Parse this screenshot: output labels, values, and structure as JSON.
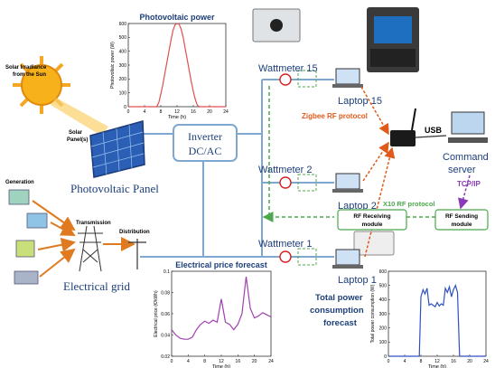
{
  "pv_panel": {
    "label": "Photovoltaic Panel",
    "irradiance_label_1": "Solar Irradiance",
    "irradiance_label_2": "from the Sun",
    "panel_label_1": "Solar",
    "panel_label_2": "Panel(s)"
  },
  "inverter": {
    "line1": "Inverter",
    "line2": "DC/AC"
  },
  "grid": {
    "label": "Electrical grid",
    "generation": "Generation",
    "transmission": "Transmission",
    "distribution": "Distribution"
  },
  "wattmeters": [
    "Wattmeter 15",
    "Wattmeter 2",
    "Wattmeter 1"
  ],
  "laptops": [
    "Laptop 15",
    "Laptop 2",
    "Laptop 1"
  ],
  "protocols": {
    "zigbee": "Zigbee RF protocol",
    "x10": "X10 RF protocol",
    "tcpip": "TCP/IP",
    "usb": "USB"
  },
  "server": {
    "line1": "Command",
    "line2": "server"
  },
  "modules": {
    "receiving": {
      "line1": "RF Receiving",
      "line2": "module"
    },
    "sending": {
      "line1": "RF Sending",
      "line2": "module"
    }
  },
  "forecast_label": {
    "line1": "Total power",
    "line2": "consumption",
    "line3": "forecast"
  },
  "colors": {
    "line_blue": "#7fa7cf",
    "grid_green": "#4ca84c",
    "rf_orange": "#e05a1a",
    "purple": "#8a3ab9",
    "red": "#d62020"
  },
  "chart_data": [
    {
      "id": "pv",
      "type": "line",
      "title": "Photovoltaic power",
      "xlabel": "Time (h)",
      "ylabel": "Photovoltaic power (W)",
      "xlim": [
        0,
        24
      ],
      "ylim": [
        0,
        600
      ],
      "xticks": [
        0,
        4,
        8,
        12,
        16,
        20,
        24
      ],
      "yticks": [
        0,
        100,
        200,
        300,
        400,
        500,
        600
      ],
      "color": "#e05050",
      "series": [
        {
          "x": [
            0,
            7,
            7.5,
            8,
            8.5,
            9,
            9.5,
            10,
            10.5,
            11,
            11.5,
            12,
            12.5,
            13,
            13.5,
            14,
            14.5,
            15,
            15.5,
            16,
            16.5,
            17,
            17.5,
            24
          ],
          "y": [
            0,
            0,
            30,
            90,
            160,
            240,
            320,
            400,
            480,
            550,
            590,
            600,
            595,
            560,
            500,
            420,
            340,
            260,
            180,
            110,
            50,
            10,
            0,
            0
          ]
        }
      ]
    },
    {
      "id": "price",
      "type": "line",
      "title": "Electrical price forecast",
      "xlabel": "Time (h)",
      "ylabel": "Electrical price (€/kWh)",
      "xlim": [
        0,
        24
      ],
      "ylim": [
        0.02,
        0.1
      ],
      "xticks": [
        0,
        4,
        8,
        12,
        16,
        20,
        24
      ],
      "yticks": [
        0.02,
        0.04,
        0.06,
        0.08,
        0.1
      ],
      "color": "#a040b0",
      "series": [
        {
          "x": [
            0,
            1,
            2,
            3,
            4,
            5,
            6,
            7,
            8,
            9,
            10,
            11,
            12,
            13,
            14,
            15,
            16,
            17,
            18,
            19,
            20,
            21,
            22,
            23,
            24
          ],
          "y": [
            0.045,
            0.04,
            0.037,
            0.036,
            0.036,
            0.038,
            0.045,
            0.05,
            0.053,
            0.051,
            0.054,
            0.052,
            0.074,
            0.052,
            0.05,
            0.045,
            0.05,
            0.06,
            0.095,
            0.065,
            0.056,
            0.058,
            0.061,
            0.059,
            0.057
          ]
        }
      ]
    },
    {
      "id": "consumption",
      "type": "line",
      "title": "",
      "xlabel": "Time (h)",
      "ylabel": "Total power consumption (W)",
      "xlim": [
        0,
        24
      ],
      "ylim": [
        0,
        600
      ],
      "xticks": [
        0,
        4,
        8,
        12,
        16,
        20,
        24
      ],
      "yticks": [
        0,
        100,
        200,
        300,
        400,
        500,
        600
      ],
      "color": "#3050c0",
      "series": [
        {
          "x": [
            0,
            7,
            7.6,
            8,
            8.5,
            9,
            9.5,
            10,
            10.5,
            11,
            11.5,
            12,
            12.5,
            13,
            13.5,
            14,
            14.5,
            15,
            15.5,
            16,
            16.5,
            17,
            17.5,
            24
          ],
          "y": [
            0,
            0,
            0,
            420,
            470,
            440,
            480,
            360,
            370,
            360,
            350,
            380,
            355,
            370,
            360,
            480,
            450,
            490,
            420,
            470,
            500,
            450,
            0,
            0
          ]
        }
      ]
    }
  ]
}
